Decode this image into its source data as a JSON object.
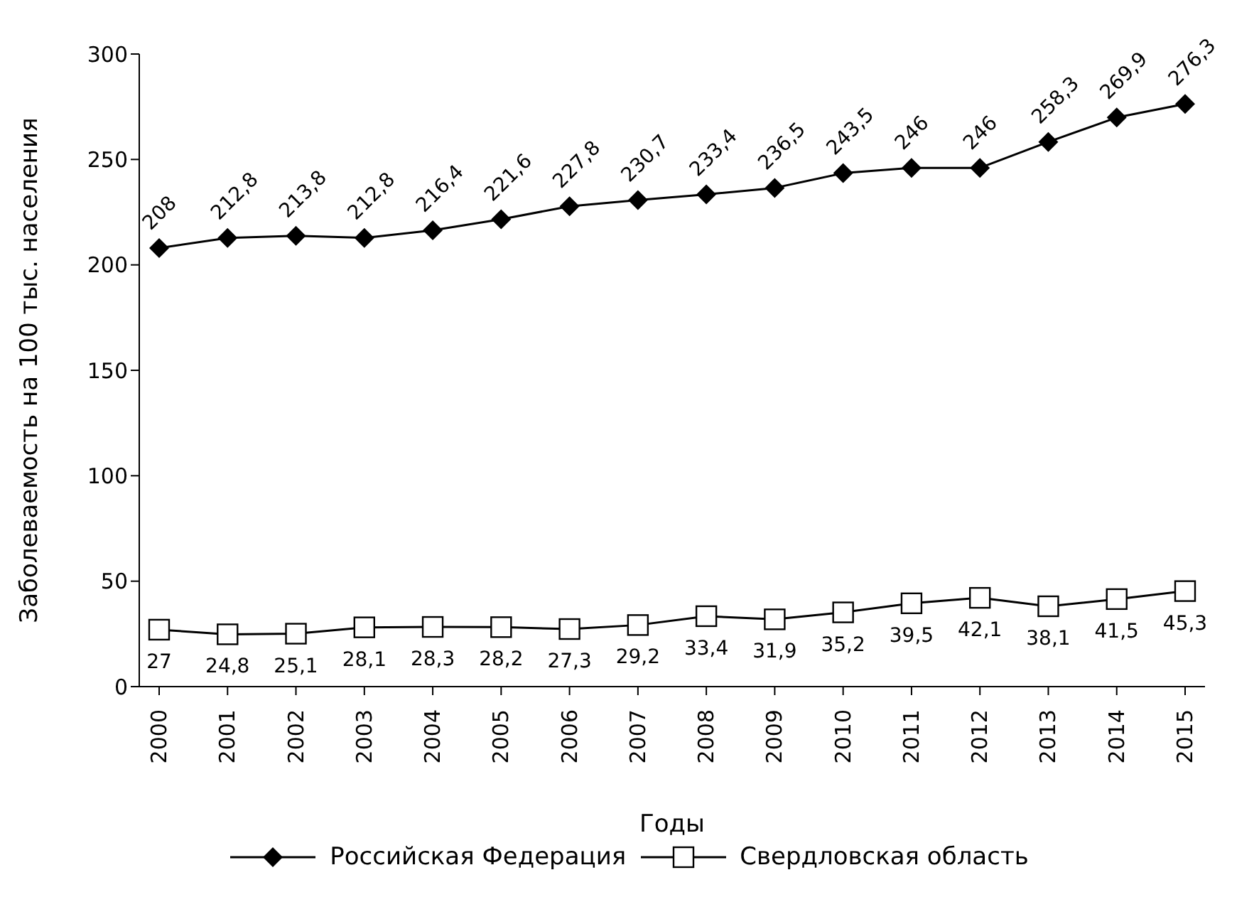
{
  "chart_data": {
    "type": "line",
    "xlabel": "Годы",
    "ylabel": "Заболеваемость на 100 тыс. населения",
    "categories": [
      "2000",
      "2001",
      "2002",
      "2003",
      "2004",
      "2005",
      "2006",
      "2007",
      "2008",
      "2009",
      "2010",
      "2011",
      "2012",
      "2013",
      "2014",
      "2015"
    ],
    "series": [
      {
        "name": "Российская Федерация",
        "color": "#000000",
        "marker": "diamond",
        "values": [
          208,
          212.8,
          213.8,
          212.8,
          216.4,
          221.6,
          227.8,
          230.7,
          233.4,
          236.5,
          243.5,
          246,
          246,
          258.3,
          269.9,
          276.3
        ],
        "value_labels": [
          "208",
          "212,8",
          "213,8",
          "212,8",
          "216,4",
          "221,6",
          "227,8",
          "230,7",
          "233,4",
          "236,5",
          "243,5",
          "246",
          "246",
          "258,3",
          "269,9",
          "276,3"
        ]
      },
      {
        "name": "Свердловская область",
        "color": "#000000",
        "marker": "square",
        "values": [
          27,
          24.8,
          25.1,
          28.1,
          28.3,
          28.2,
          27.3,
          29.2,
          33.4,
          31.9,
          35.2,
          39.5,
          42.1,
          38.1,
          41.5,
          45.3
        ],
        "value_labels": [
          "27",
          "24,8",
          "25,1",
          "28,1",
          "28,3",
          "28,2",
          "27,3",
          "29,2",
          "33,4",
          "31,9",
          "35,2",
          "39,5",
          "42,1",
          "38,1",
          "41,5",
          "45,3"
        ]
      }
    ],
    "ylim": [
      0,
      300
    ],
    "yticks": [
      0,
      50,
      100,
      150,
      200,
      250,
      300
    ],
    "grid": false,
    "legend": "bottom"
  }
}
